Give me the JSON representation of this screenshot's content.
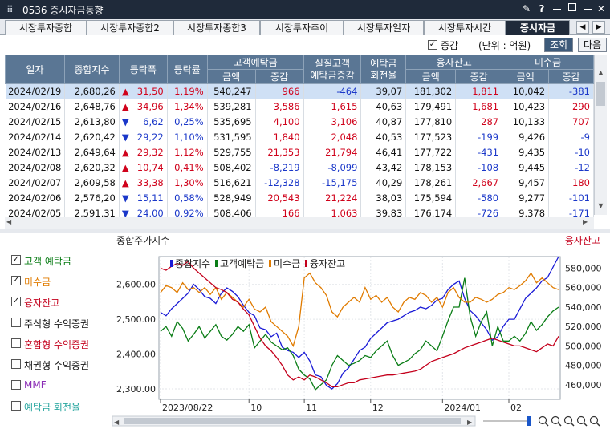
{
  "window": {
    "code_title": "0536 증시자금동향",
    "icon": "grip-icon",
    "controls": [
      "pin-icon",
      "help-icon",
      "minimize-icon",
      "close-icon"
    ],
    "bg": "#1f2a3a"
  },
  "tabs": [
    {
      "label": "시장투자종합",
      "active": false
    },
    {
      "label": "시장투자종합2",
      "active": false
    },
    {
      "label": "시장투자종합3",
      "active": false
    },
    {
      "label": "시장투자추이",
      "active": false
    },
    {
      "label": "시장투자일자",
      "active": false
    },
    {
      "label": "시장투자시간",
      "active": false
    },
    {
      "label": "증시자금",
      "active": true
    }
  ],
  "options": {
    "change_checkbox_label": "증감",
    "change_checked": true,
    "unit_label": "(단위 : 억원)",
    "query_button": "조회",
    "next_button": "다음"
  },
  "table": {
    "headers_top": [
      "일자",
      "종합지수",
      "등락폭",
      "등락률",
      "고객예탁금",
      "실질고객\n예탁금증감",
      "예탁금\n회전율",
      "융자잔고",
      "미수금"
    ],
    "headers_sub": [
      "금액",
      "증감",
      "금액",
      "증감",
      "금액",
      "증감"
    ],
    "rows": [
      {
        "date": "2024/02/19",
        "index": "2,680,26",
        "dir": "up",
        "chg": "31,50",
        "rate": "1,19%",
        "dep": "540,247",
        "dep_chg": "966",
        "real_chg": "-464",
        "turnover": "39,07",
        "loan": "181,302",
        "loan_chg": "1,811",
        "unpaid": "10,042",
        "unpaid_chg": "-381"
      },
      {
        "date": "2024/02/16",
        "index": "2,648,76",
        "dir": "up",
        "chg": "34,96",
        "rate": "1,34%",
        "dep": "539,281",
        "dep_chg": "3,586",
        "real_chg": "1,615",
        "turnover": "40,63",
        "loan": "179,491",
        "loan_chg": "1,681",
        "unpaid": "10,423",
        "unpaid_chg": "290"
      },
      {
        "date": "2024/02/15",
        "index": "2,613,80",
        "dir": "dn",
        "chg": "6,62",
        "rate": "0,25%",
        "dep": "535,695",
        "dep_chg": "4,100",
        "real_chg": "3,106",
        "turnover": "40,87",
        "loan": "177,810",
        "loan_chg": "287",
        "unpaid": "10,133",
        "unpaid_chg": "707"
      },
      {
        "date": "2024/02/14",
        "index": "2,620,42",
        "dir": "dn",
        "chg": "29,22",
        "rate": "1,10%",
        "dep": "531,595",
        "dep_chg": "1,840",
        "real_chg": "2,048",
        "turnover": "40,53",
        "loan": "177,523",
        "loan_chg": "-199",
        "unpaid": "9,426",
        "unpaid_chg": "-9"
      },
      {
        "date": "2024/02/13",
        "index": "2,649,64",
        "dir": "up",
        "chg": "29,32",
        "rate": "1,12%",
        "dep": "529,755",
        "dep_chg": "21,353",
        "real_chg": "21,794",
        "turnover": "46,41",
        "loan": "177,722",
        "loan_chg": "-431",
        "unpaid": "9,435",
        "unpaid_chg": "-10"
      },
      {
        "date": "2024/02/08",
        "index": "2,620,32",
        "dir": "up",
        "chg": "10,74",
        "rate": "0,41%",
        "dep": "508,402",
        "dep_chg": "-8,219",
        "real_chg": "-8,099",
        "turnover": "43,42",
        "loan": "178,153",
        "loan_chg": "-108",
        "unpaid": "9,445",
        "unpaid_chg": "-12"
      },
      {
        "date": "2024/02/07",
        "index": "2,609,58",
        "dir": "up",
        "chg": "33,38",
        "rate": "1,30%",
        "dep": "516,621",
        "dep_chg": "-12,328",
        "real_chg": "-15,175",
        "turnover": "40,29",
        "loan": "178,261",
        "loan_chg": "2,667",
        "unpaid": "9,457",
        "unpaid_chg": "180"
      },
      {
        "date": "2024/02/06",
        "index": "2,576,20",
        "dir": "dn",
        "chg": "15,11",
        "rate": "0,58%",
        "dep": "528,949",
        "dep_chg": "20,543",
        "real_chg": "21,224",
        "turnover": "38,03",
        "loan": "175,594",
        "loan_chg": "-580",
        "unpaid": "9,277",
        "unpaid_chg": "-101"
      },
      {
        "date": "2024/02/05",
        "index": "2,591,31",
        "dir": "dn",
        "chg": "24,00",
        "rate": "0,92%",
        "dep": "508,406",
        "dep_chg": "166",
        "real_chg": "1,063",
        "turnover": "39,83",
        "loan": "176,174",
        "loan_chg": "-726",
        "unpaid": "9,378",
        "unpaid_chg": "-171"
      }
    ]
  },
  "legend_panel": [
    {
      "label": "고객 예탁금",
      "checked": true,
      "color": "#0a7d16"
    },
    {
      "label": "미수금",
      "checked": true,
      "color": "#e07b00"
    },
    {
      "label": "융자잔고",
      "checked": true,
      "color": "#c4001c"
    },
    {
      "label": "주식형 수익증권",
      "checked": false,
      "color": "#111111"
    },
    {
      "label": "혼합형 수익증권",
      "checked": false,
      "color": "#c4001c"
    },
    {
      "label": "채권형 수익증권",
      "checked": false,
      "color": "#111111"
    },
    {
      "label": "MMF",
      "checked": false,
      "color": "#8a2bb5"
    },
    {
      "label": "예탁금 회전율",
      "checked": false,
      "color": "#2aa7a0"
    }
  ],
  "chart_data": {
    "type": "line",
    "left_title": "종합주가지수",
    "right_title": "융자잔고",
    "x_ticks": [
      "2023/08/22",
      "10",
      "11",
      "12",
      "2024/01",
      "02"
    ],
    "left_axis": {
      "ticks": [
        "2,600.00",
        "2,500.00",
        "2,400.00",
        "2,300.00"
      ],
      "range": [
        2270,
        2680
      ]
    },
    "right_axis": {
      "ticks": [
        "580,000",
        "560,000",
        "540,000",
        "520,000",
        "500,000",
        "480,000",
        "460,000"
      ],
      "range": [
        445000,
        592000
      ]
    },
    "legend": [
      {
        "name": "종합지수",
        "color": "#1a1ad6"
      },
      {
        "name": "고객예탁금",
        "color": "#0a7d16"
      },
      {
        "name": "미수금",
        "color": "#e07b00"
      },
      {
        "name": "융자잔고",
        "color": "#c4001c"
      }
    ],
    "series": [
      {
        "name": "종합지수",
        "axis": "left",
        "color": "#1a1ad6",
        "values": [
          2520,
          2510,
          2530,
          2545,
          2560,
          2575,
          2600,
          2585,
          2565,
          2560,
          2545,
          2575,
          2590,
          2580,
          2565,
          2540,
          2520,
          2510,
          2475,
          2470,
          2450,
          2460,
          2420,
          2410,
          2405,
          2390,
          2405,
          2380,
          2340,
          2335,
          2310,
          2300,
          2315,
          2345,
          2360,
          2385,
          2410,
          2420,
          2445,
          2460,
          2475,
          2490,
          2495,
          2500,
          2510,
          2520,
          2525,
          2535,
          2530,
          2540,
          2555,
          2560,
          2585,
          2600,
          2610,
          2560,
          2525,
          2510,
          2490,
          2470,
          2440,
          2450,
          2480,
          2500,
          2500,
          2530,
          2560,
          2575,
          2590,
          2610,
          2620,
          2650,
          2680
        ]
      },
      {
        "name": "고객예탁금",
        "axis": "right",
        "color": "#0a7d16",
        "values": [
          515000,
          520000,
          510000,
          525000,
          518000,
          505000,
          512000,
          520000,
          508000,
          515000,
          522000,
          510000,
          506000,
          512000,
          520000,
          515000,
          522000,
          498000,
          505000,
          512000,
          504000,
          500000,
          496000,
          498000,
          490000,
          476000,
          470000,
          466000,
          455000,
          460000,
          465000,
          480000,
          490000,
          485000,
          480000,
          482000,
          485000,
          490000,
          488000,
          495000,
          500000,
          505000,
          490000,
          480000,
          483000,
          486000,
          492000,
          496000,
          505000,
          500000,
          495000,
          510000,
          526000,
          540000,
          540000,
          570000,
          530000,
          510000,
          525000,
          535000,
          500000,
          520000,
          505000,
          505000,
          510000,
          505000,
          513000,
          525000,
          516000,
          522000,
          530000,
          536000,
          540000
        ]
      },
      {
        "name": "미수금",
        "axis": "right",
        "color": "#e07b00",
        "values": [
          555000,
          562000,
          560000,
          555000,
          565000,
          558000,
          560000,
          555000,
          560000,
          553000,
          560000,
          548000,
          555000,
          550000,
          545000,
          540000,
          548000,
          538000,
          535000,
          540000,
          525000,
          520000,
          515000,
          510000,
          500000,
          520000,
          570000,
          575000,
          565000,
          560000,
          552000,
          535000,
          530000,
          540000,
          545000,
          550000,
          545000,
          560000,
          548000,
          552000,
          545000,
          550000,
          540000,
          535000,
          545000,
          550000,
          548000,
          555000,
          552000,
          545000,
          550000,
          540000,
          555000,
          560000,
          550000,
          545000,
          545000,
          550000,
          548000,
          545000,
          548000,
          553000,
          555000,
          560000,
          558000,
          562000,
          567000,
          575000,
          565000,
          570000,
          565000,
          560000,
          558000
        ]
      },
      {
        "name": "융자잔고",
        "axis": "right",
        "color": "#c4001c",
        "values": [
          580000,
          578000,
          582000,
          585000,
          583000,
          587000,
          580000,
          575000,
          570000,
          565000,
          560000,
          558000,
          555000,
          548000,
          545000,
          538000,
          532000,
          520000,
          508000,
          500000,
          495000,
          488000,
          480000,
          470000,
          465000,
          468000,
          465000,
          470000,
          468000,
          465000,
          462000,
          458000,
          458000,
          460000,
          462000,
          462000,
          465000,
          466000,
          467000,
          468000,
          469000,
          470000,
          470000,
          471000,
          472000,
          473000,
          474000,
          476000,
          480000,
          484000,
          486000,
          488000,
          490000,
          492000,
          495000,
          498000,
          500000,
          502000,
          504000,
          506000,
          508000,
          506000,
          504000,
          502000,
          500000,
          500000,
          498000,
          496000,
          494000,
          498000,
          502000,
          500000,
          510000
        ]
      }
    ]
  }
}
